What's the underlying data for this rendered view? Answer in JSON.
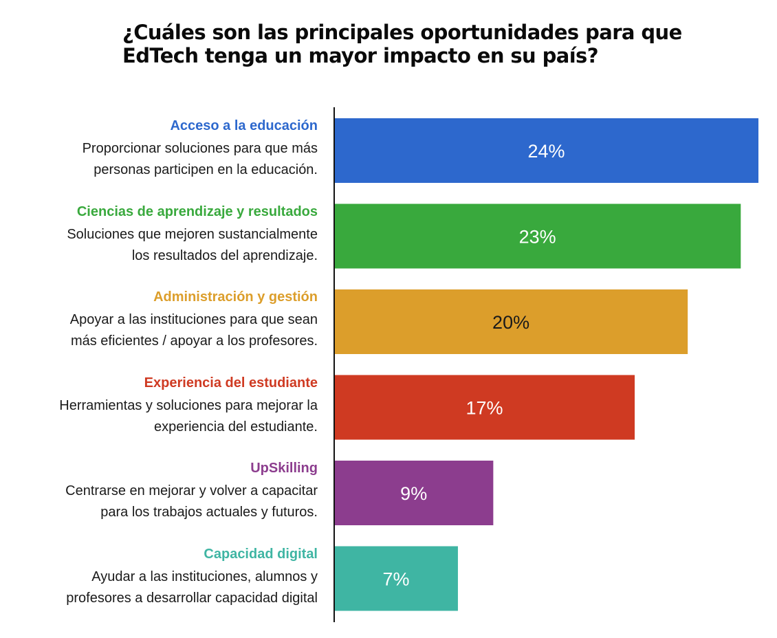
{
  "title": {
    "line1": "¿Cuáles son las principales oportunidades para que",
    "line2": "EdTech tenga un mayor impacto en su país?"
  },
  "chart_data": {
    "type": "bar",
    "orientation": "horizontal",
    "title": "¿Cuáles son las principales oportunidades para que EdTech tenga un mayor impacto en su país?",
    "xlim": [
      0,
      24
    ],
    "grid": false,
    "legend": "none",
    "categories": [
      "Acceso a la educación",
      "Ciencias de aprendizaje y resultados",
      "Administración y gestión",
      "Experiencia del estudiante",
      "UpSkilling",
      "Capacidad digital"
    ],
    "values": [
      24,
      23,
      20,
      17,
      9,
      7
    ],
    "data_labels": [
      "24%",
      "23%",
      "20%",
      "17%",
      "9%",
      "7%"
    ],
    "descriptions": [
      [
        "Proporcionar soluciones para que más",
        "personas participen en la educación."
      ],
      [
        "Soluciones que mejoren sustancialmente",
        "los resultados del aprendizaje."
      ],
      [
        "Apoyar a las instituciones para que sean",
        "más eficientes  / apoyar a los profesores."
      ],
      [
        "Herramientas y soluciones para mejorar la",
        "experiencia del estudiante."
      ],
      [
        "Centrarse en mejorar y volver a capacitar",
        "para los trabajos actuales y futuros."
      ],
      [
        "Ayudar a las instituciones, alumnos y",
        "profesores a desarrollar capacidad digital"
      ]
    ],
    "colors": [
      "#2d68cd",
      "#39a93d",
      "#dc9e2b",
      "#cf3a22",
      "#8c3d8e",
      "#3fb5a3"
    ],
    "label_colors": [
      "#ffffff",
      "#ffffff",
      "#1a1a1a",
      "#ffffff",
      "#ffffff",
      "#ffffff"
    ]
  }
}
